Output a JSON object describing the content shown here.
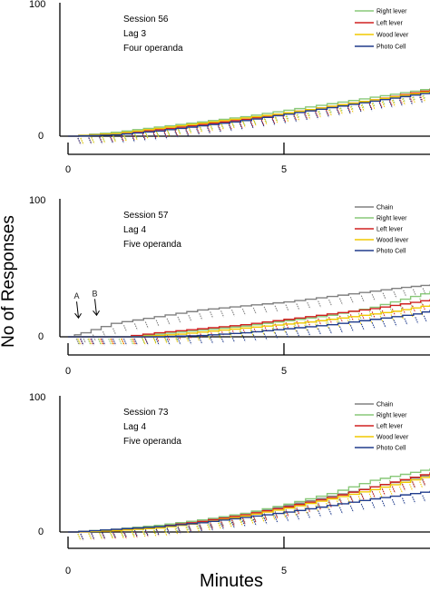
{
  "y_axis_label": "No of Responses",
  "x_axis_label": "Minutes",
  "colors": {
    "Chain": "#808080",
    "Right lever": "#88c878",
    "Left lever": "#d02020",
    "Wood lever": "#f0c800",
    "Photo Cell": "#203c8c"
  },
  "chart_data": [
    {
      "type": "line",
      "info": [
        "Session 56",
        "Lag 3",
        "Four operanda"
      ],
      "x_ticks": [
        "0",
        "5"
      ],
      "y_ticks": [
        "0",
        "100"
      ],
      "xlim": [
        0,
        8.4
      ],
      "ylim": [
        0,
        100
      ],
      "legend_position": "top-right",
      "annotations": [],
      "series": [
        {
          "name": "Right lever",
          "x": [
            0,
            1,
            2,
            3,
            4,
            5,
            6,
            7,
            8.4
          ],
          "y": [
            0,
            3,
            7,
            11,
            15,
            20,
            25,
            30,
            37
          ]
        },
        {
          "name": "Left lever",
          "x": [
            0,
            1,
            2,
            3,
            4,
            5,
            6,
            7,
            8.4
          ],
          "y": [
            0,
            2,
            5,
            9,
            13,
            18,
            23,
            28,
            36
          ]
        },
        {
          "name": "Wood lever",
          "x": [
            0,
            1,
            2,
            3,
            4,
            5,
            6,
            7,
            8.4
          ],
          "y": [
            0,
            2,
            6,
            10,
            14,
            18,
            23,
            28,
            35
          ]
        },
        {
          "name": "Photo Cell",
          "x": [
            0,
            1,
            2,
            3,
            4,
            5,
            6,
            7,
            8.4
          ],
          "y": [
            0,
            1,
            4,
            8,
            12,
            17,
            22,
            27,
            34
          ]
        }
      ]
    },
    {
      "type": "line",
      "info": [
        "Session 57",
        "Lag 4",
        "Five operanda"
      ],
      "x_ticks": [
        "0",
        "5"
      ],
      "y_ticks": [
        "0",
        "100"
      ],
      "xlim": [
        0,
        8.4
      ],
      "ylim": [
        0,
        100
      ],
      "legend_position": "top-right",
      "annotations": [
        {
          "text": "A",
          "x": 0.2,
          "y": 12
        },
        {
          "text": "B",
          "x": 0.62,
          "y": 14
        }
      ],
      "series": [
        {
          "name": "Chain",
          "x": [
            0,
            0.3,
            1,
            2,
            3,
            4,
            5,
            6,
            7,
            7.5,
            8.4
          ],
          "y": [
            0,
            3,
            10,
            15,
            20,
            23,
            26,
            30,
            34,
            36,
            39
          ]
        },
        {
          "name": "Right lever",
          "x": [
            0,
            1.2,
            2,
            3,
            4,
            5,
            6,
            7,
            8.4
          ],
          "y": [
            0,
            0,
            2,
            5,
            8,
            12,
            16,
            22,
            34
          ]
        },
        {
          "name": "Left lever",
          "x": [
            0,
            1.2,
            2,
            3,
            4,
            5,
            6,
            7,
            8.4
          ],
          "y": [
            0,
            0,
            3,
            6,
            9,
            13,
            17,
            21,
            28
          ]
        },
        {
          "name": "Wood lever",
          "x": [
            0,
            1.5,
            2.5,
            3.5,
            4.5,
            5.5,
            6.5,
            7.5,
            8.4
          ],
          "y": [
            0,
            0,
            2,
            5,
            8,
            11,
            15,
            19,
            24
          ]
        },
        {
          "name": "Photo Cell",
          "x": [
            0,
            2,
            3,
            4,
            5,
            6,
            7,
            8,
            8.4
          ],
          "y": [
            0,
            0,
            1,
            3,
            6,
            9,
            13,
            17,
            20
          ]
        }
      ]
    },
    {
      "type": "line",
      "info": [
        "Session 73",
        "Lag 4",
        "Five operanda"
      ],
      "x_ticks": [
        "0",
        "5"
      ],
      "y_ticks": [
        "0",
        "100"
      ],
      "xlim": [
        0,
        8.4
      ],
      "ylim": [
        0,
        100
      ],
      "legend_position": "top-right",
      "annotations": [],
      "series": [
        {
          "name": "Chain",
          "x": [
            0,
            1,
            2,
            3,
            4,
            5,
            6,
            7,
            8.4
          ],
          "y": [
            0,
            2,
            5,
            9,
            14,
            20,
            27,
            34,
            44
          ]
        },
        {
          "name": "Right lever",
          "x": [
            0,
            1,
            2,
            3,
            4,
            5,
            6,
            7,
            8.4
          ],
          "y": [
            0,
            2,
            5,
            9,
            14,
            21,
            29,
            39,
            48
          ]
        },
        {
          "name": "Left lever",
          "x": [
            0,
            1,
            2,
            3,
            4,
            5,
            6,
            7,
            8.4
          ],
          "y": [
            0,
            1,
            4,
            8,
            13,
            19,
            26,
            34,
            45
          ]
        },
        {
          "name": "Wood lever",
          "x": [
            0,
            1,
            2,
            3,
            4,
            5,
            6,
            7,
            8.4
          ],
          "y": [
            0,
            1,
            3,
            7,
            12,
            18,
            25,
            32,
            43
          ]
        },
        {
          "name": "Photo Cell",
          "x": [
            0,
            1,
            2,
            3,
            4,
            5,
            6,
            7,
            8.4
          ],
          "y": [
            0,
            2,
            4,
            7,
            11,
            15,
            20,
            25,
            31
          ]
        }
      ]
    }
  ]
}
